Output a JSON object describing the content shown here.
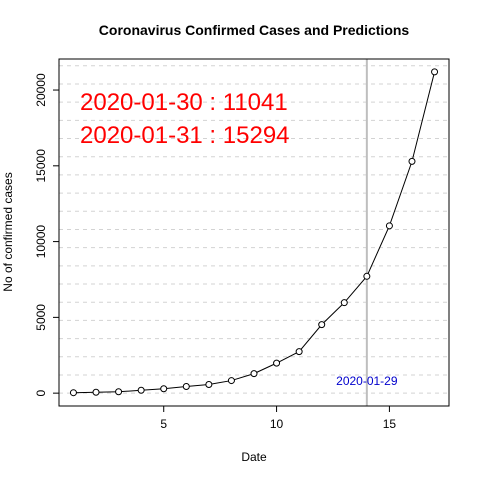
{
  "chart_data": {
    "type": "line",
    "title": "Coronavirus Confirmed Cases and Predictions",
    "xlabel": "Date",
    "ylabel": "No of confirmed cases",
    "xlim": [
      0.36,
      17.64
    ],
    "ylim": [
      -848,
      22048
    ],
    "x_ticks": [
      5,
      10,
      15
    ],
    "y_ticks": [
      0,
      5000,
      10000,
      15000,
      20000
    ],
    "grid_y": [
      0,
      1200,
      2400,
      3600,
      4800,
      6000,
      7200,
      8400,
      9600,
      10800,
      12000,
      13200,
      14400,
      15600,
      16800,
      18000,
      19200,
      20400,
      21600
    ],
    "x": [
      1,
      2,
      3,
      4,
      5,
      6,
      7,
      8,
      9,
      10,
      11,
      12,
      13,
      14,
      15,
      16,
      17
    ],
    "series": [
      {
        "values": [
          30,
          60,
          90,
          190,
          290,
          440,
          570,
          830,
          1290,
          1980,
          2740,
          4520,
          5970,
          7710,
          11041,
          15294,
          21200
        ]
      }
    ],
    "vline": {
      "x": 14,
      "label": "2020-01-29",
      "color": "#bebebe",
      "label_color": "#0000cd"
    },
    "annotations": [
      {
        "text": "2020-01-30 : 11041",
        "color": "#ff0000"
      },
      {
        "text": "2020-01-31 : 15294",
        "color": "#ff0000"
      }
    ]
  }
}
